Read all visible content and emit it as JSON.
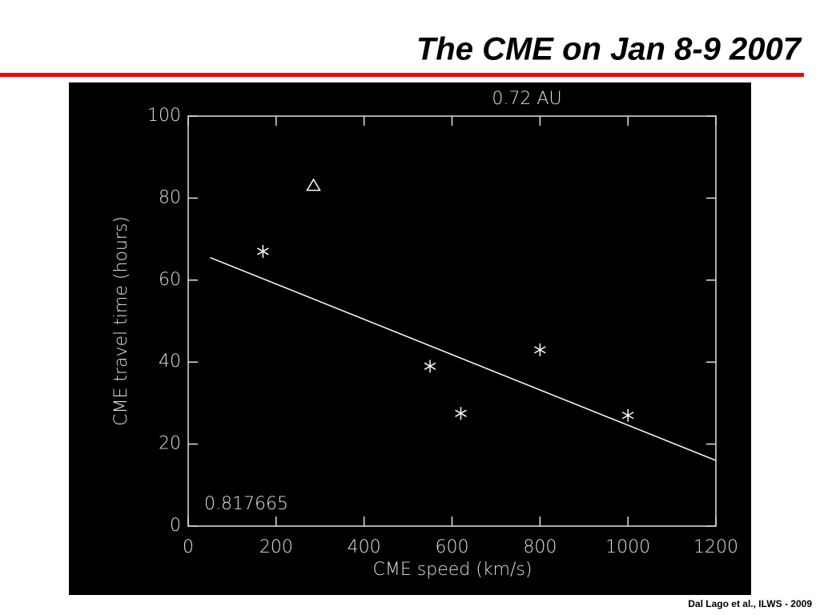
{
  "slide_title": "The CME on Jan 8-9 2007",
  "footer": "Dal Lago et al., ILWS - 2009",
  "chart_data": {
    "type": "scatter",
    "title": "0.72 AU",
    "annotation": "0.817665",
    "x_label": "CME speed (km/s)",
    "y_label": "CME travel time (hours)",
    "xlim": [
      0,
      1200
    ],
    "xticks": [
      0,
      200,
      400,
      600,
      800,
      1000,
      1200
    ],
    "ylim": [
      0,
      100
    ],
    "yticks": [
      0,
      20,
      40,
      60,
      80,
      100
    ],
    "series": [
      {
        "marker": "asterisk",
        "color": "#ffffff",
        "x": [
          170,
          550,
          620,
          800,
          1000
        ],
        "values": [
          67,
          39,
          27.5,
          43,
          27
        ]
      },
      {
        "marker": "triangle",
        "color": "#ffffff",
        "x": [
          285
        ],
        "values": [
          83
        ]
      },
      {
        "marker": "line",
        "color": "#ffffff",
        "x": [
          50,
          1200
        ],
        "values": [
          65.5,
          16
        ]
      }
    ]
  }
}
